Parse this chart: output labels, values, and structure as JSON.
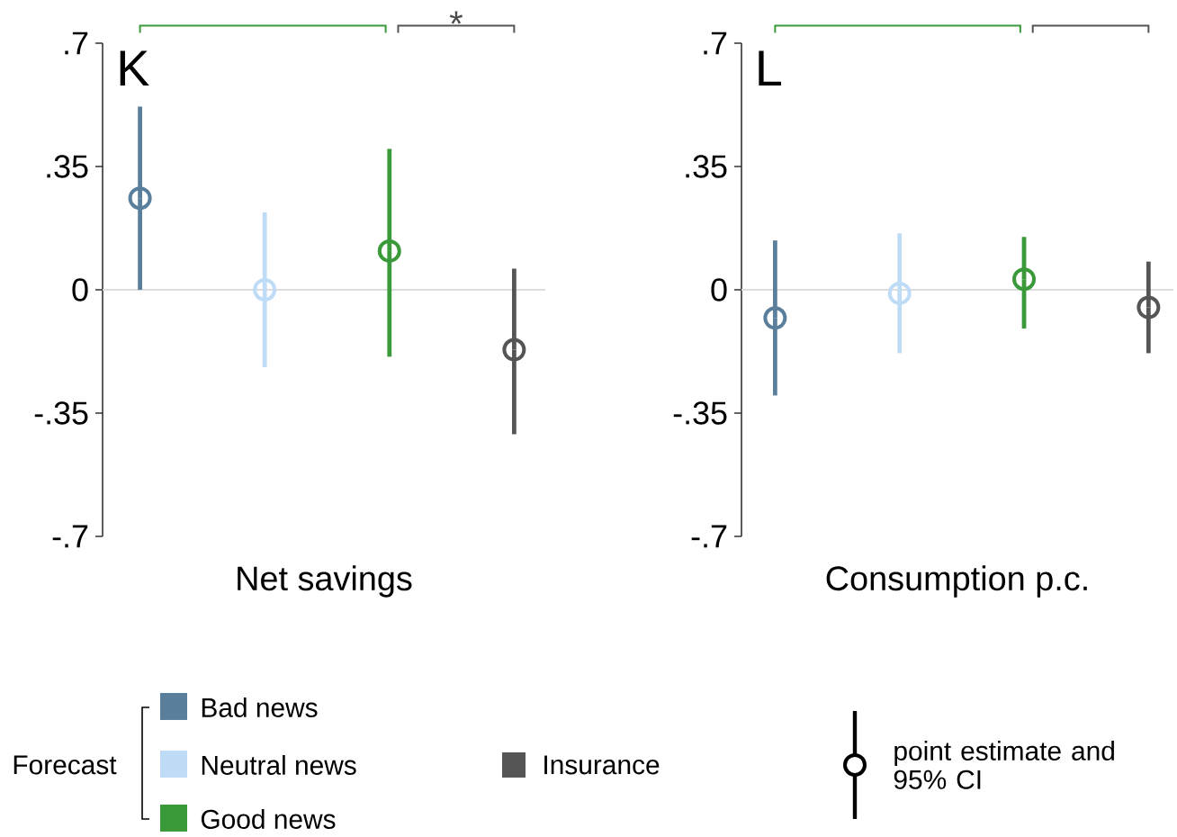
{
  "chart_data": [
    {
      "type": "scatter",
      "title": "K",
      "xlabel": "Net savings",
      "categories": [
        null,
        null,
        null,
        null
      ],
      "series": [
        {
          "name": "Bad news",
          "color": "#5a7f9c",
          "values": [
            0.26,
            null,
            null,
            null
          ],
          "errors": [
            [
              0,
              0.52
            ],
            null,
            null,
            null
          ]
        },
        {
          "name": "Neutral news",
          "color": "#bfdcf7",
          "values": [
            null,
            0,
            null,
            null
          ],
          "errors": [
            null,
            [
              -0.22,
              0.22
            ],
            null,
            null
          ]
        },
        {
          "name": "Good news",
          "color": "#3a9a3a",
          "values": [
            null,
            null,
            0.11,
            null
          ],
          "errors": [
            null,
            null,
            [
              -0.19,
              0.4
            ],
            null
          ]
        },
        {
          "name": "Insurance",
          "color": "#555555",
          "values": [
            null,
            null,
            null,
            -0.17
          ],
          "errors": [
            null,
            null,
            null,
            [
              -0.41,
              0.06
            ]
          ]
        }
      ],
      "ylim": [
        -0.7,
        0.7
      ],
      "yticks": [
        {
          "value": -0.7,
          "label": "-.7"
        },
        {
          "value": -0.35,
          "label": "-.35"
        },
        0,
        {
          "value": 0.35,
          "label": ".35"
        },
        {
          "value": 0.7,
          "label": ".7"
        }
      ],
      "ref_lines": [
        {
          "axis": "y",
          "value": 0,
          "color": "#dddddd"
        }
      ],
      "marker": "circle",
      "legend": "bottom",
      "legend_title": "Forecast",
      "annotations": [
        "*",
        "point estimate and 95% CI"
      ]
    },
    {
      "type": "scatter",
      "title": "L",
      "xlabel": "Consumption p.c.",
      "categories": [
        null,
        null,
        null,
        null
      ],
      "series": [
        {
          "color": "#5a7f9c",
          "values": [
            -0.08,
            null,
            null,
            null
          ],
          "errors": [
            [
              -0.3,
              0.14
            ],
            null,
            null,
            null
          ]
        },
        {
          "color": "#bfdcf7",
          "values": [
            null,
            -0.01,
            null,
            null
          ],
          "errors": [
            null,
            [
              -0.18,
              0.16
            ],
            null,
            null
          ]
        },
        {
          "color": "#3a9a3a",
          "values": [
            null,
            null,
            0.03,
            null
          ],
          "errors": [
            null,
            null,
            [
              -0.11,
              0.15
            ],
            null
          ]
        },
        {
          "color": "#555555",
          "values": [
            null,
            null,
            null,
            -0.05
          ],
          "errors": [
            null,
            null,
            null,
            [
              -0.18,
              0.08
            ]
          ]
        }
      ],
      "ylim": [
        -0.7,
        0.7
      ],
      "yticks": [
        {
          "value": -0.7,
          "label": "-.7"
        },
        {
          "value": -0.35,
          "label": "-.35"
        },
        0,
        {
          "value": 0.35,
          "label": ".35"
        },
        {
          "value": 0.7,
          "label": ".7"
        }
      ],
      "ref_lines": [
        {
          "axis": "y",
          "value": 0,
          "color": "#dddddd"
        }
      ],
      "marker": "circle"
    }
  ]
}
